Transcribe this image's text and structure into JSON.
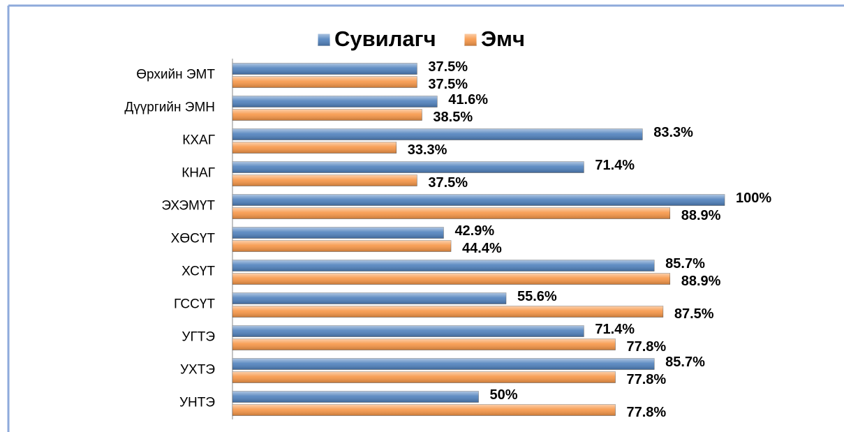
{
  "chart_data": {
    "type": "bar",
    "orientation": "horizontal",
    "categories": [
      "Өрхийн ЭМТ",
      "Дүүргийн ЭМН",
      "КХАГ",
      "КНАГ",
      "ЭХЭМҮТ",
      "ХӨСҮТ",
      "ХСҮТ",
      "ГССҮТ",
      "УГТЭ",
      "УХТЭ",
      "УНТЭ"
    ],
    "series": [
      {
        "name": "Сувилагч",
        "color": "#4f81bd",
        "values": [
          37.5,
          41.6,
          83.3,
          71.4,
          100,
          42.9,
          85.7,
          55.6,
          71.4,
          85.7,
          50
        ],
        "value_labels": [
          "37.5%",
          "41.6%",
          "83.3%",
          "71.4%",
          "100%",
          "42.9%",
          "85.7%",
          "55.6%",
          "71.4%",
          "85.7%",
          "50%"
        ]
      },
      {
        "name": "Эмч",
        "color": "#f79646",
        "values": [
          37.5,
          38.5,
          33.3,
          37.5,
          88.9,
          44.4,
          88.9,
          87.5,
          77.8,
          77.8,
          77.8
        ],
        "value_labels": [
          "37.5%",
          "38.5%",
          "33.3%",
          "37.5%",
          "88.9%",
          "44.4%",
          "88.9%",
          "87.5%",
          "77.8%",
          "77.8%",
          "77.8%"
        ]
      }
    ],
    "xlim": [
      0,
      100
    ],
    "legend": "top"
  }
}
